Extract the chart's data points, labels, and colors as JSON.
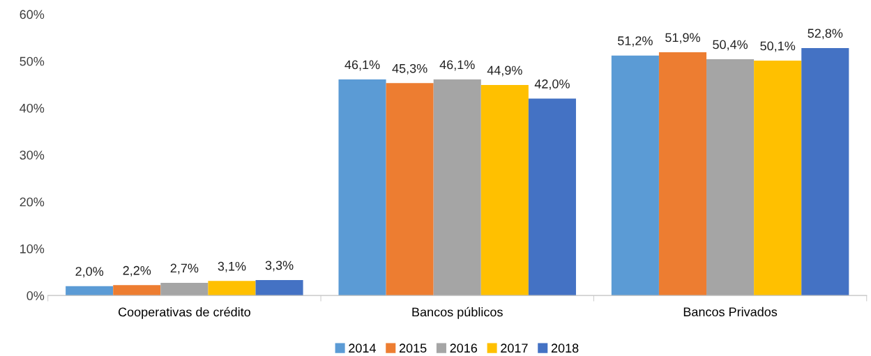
{
  "chart_data": {
    "type": "bar",
    "categories": [
      "Cooperativas de crédito",
      "Bancos públicos",
      "Bancos Privados"
    ],
    "series": [
      {
        "name": "2014",
        "color": "#5b9bd5",
        "values": [
          2.0,
          46.1,
          51.2
        ],
        "value_labels": [
          "2,0%",
          "46,1%",
          "51,2%"
        ]
      },
      {
        "name": "2015",
        "color": "#ed7d31",
        "values": [
          2.2,
          45.3,
          51.9
        ],
        "value_labels": [
          "2,2%",
          "45,3%",
          "51,9%"
        ]
      },
      {
        "name": "2016",
        "color": "#a5a5a5",
        "values": [
          2.7,
          46.1,
          50.4
        ],
        "value_labels": [
          "2,7%",
          "46,1%",
          "50,4%"
        ]
      },
      {
        "name": "2017",
        "color": "#ffc000",
        "values": [
          3.1,
          44.9,
          50.1
        ],
        "value_labels": [
          "3,1%",
          "44,9%",
          "50,1%"
        ]
      },
      {
        "name": "2018",
        "color": "#4472c4",
        "values": [
          3.3,
          42.0,
          52.8
        ],
        "value_labels": [
          "3,3%",
          "42,0%",
          "52,8%"
        ]
      }
    ],
    "ylim": [
      0,
      60
    ],
    "yticks": [
      {
        "value": 0,
        "label": "0%"
      },
      {
        "value": 10,
        "label": "10%"
      },
      {
        "value": 20,
        "label": "20%"
      },
      {
        "value": 30,
        "label": "30%"
      },
      {
        "value": 40,
        "label": "40%"
      },
      {
        "value": 50,
        "label": "50%"
      },
      {
        "value": 60,
        "label": "60%"
      }
    ],
    "grid": false,
    "legend": "bottom"
  }
}
